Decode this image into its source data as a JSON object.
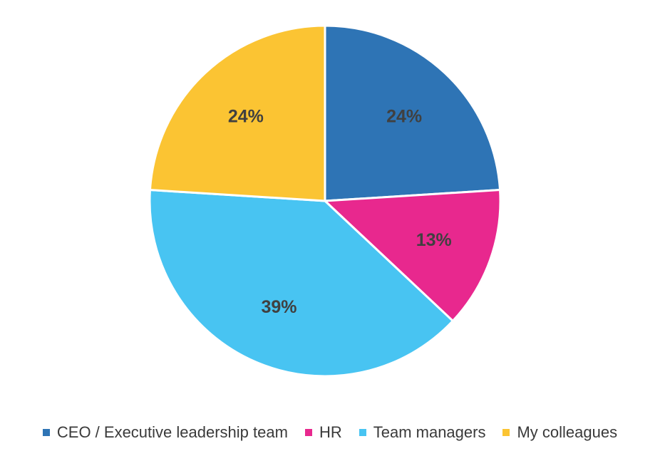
{
  "chart_data": {
    "type": "pie",
    "title": "",
    "categories": [
      "CEO / Executive leadership team",
      "HR",
      "Team managers",
      "My colleagues"
    ],
    "values": [
      24,
      13,
      39,
      24
    ],
    "labels": [
      "24%",
      "13%",
      "39%",
      "24%"
    ],
    "colors": [
      "#2E74B5",
      "#E8288E",
      "#48C4F2",
      "#FBC433"
    ],
    "start_angle_deg": 0,
    "direction": "clockwise",
    "legend_position": "bottom"
  }
}
